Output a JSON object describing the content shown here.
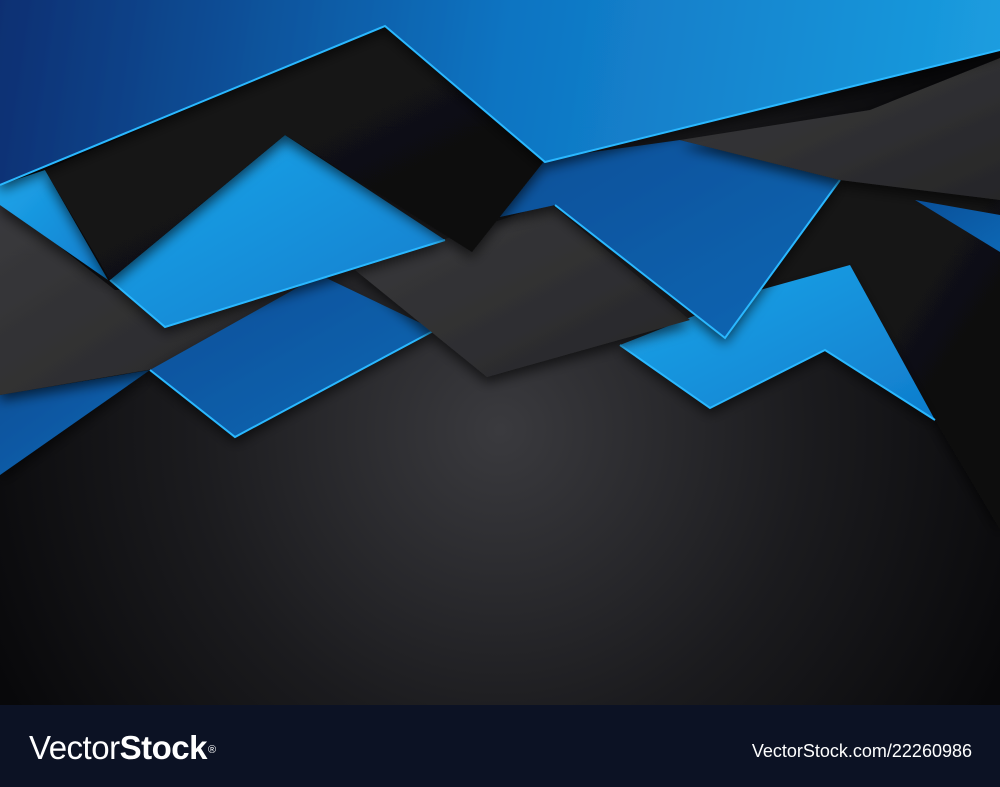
{
  "artwork": {
    "subject": "abstract-geometric-background",
    "colors": {
      "blue_light": "#1a9ae0",
      "blue_mid": "#0f6fb8",
      "blue_dark": "#073c7e",
      "black": "#0e0e10",
      "dark_grey": "#2e2e31",
      "edge_highlight": "#2ab8ff"
    }
  },
  "footer": {
    "logo_part1": "Vector",
    "logo_part2": "Stock",
    "logo_mark": "®",
    "image_id": "VectorStock.com/22260986",
    "background_color": "#0c1224"
  }
}
